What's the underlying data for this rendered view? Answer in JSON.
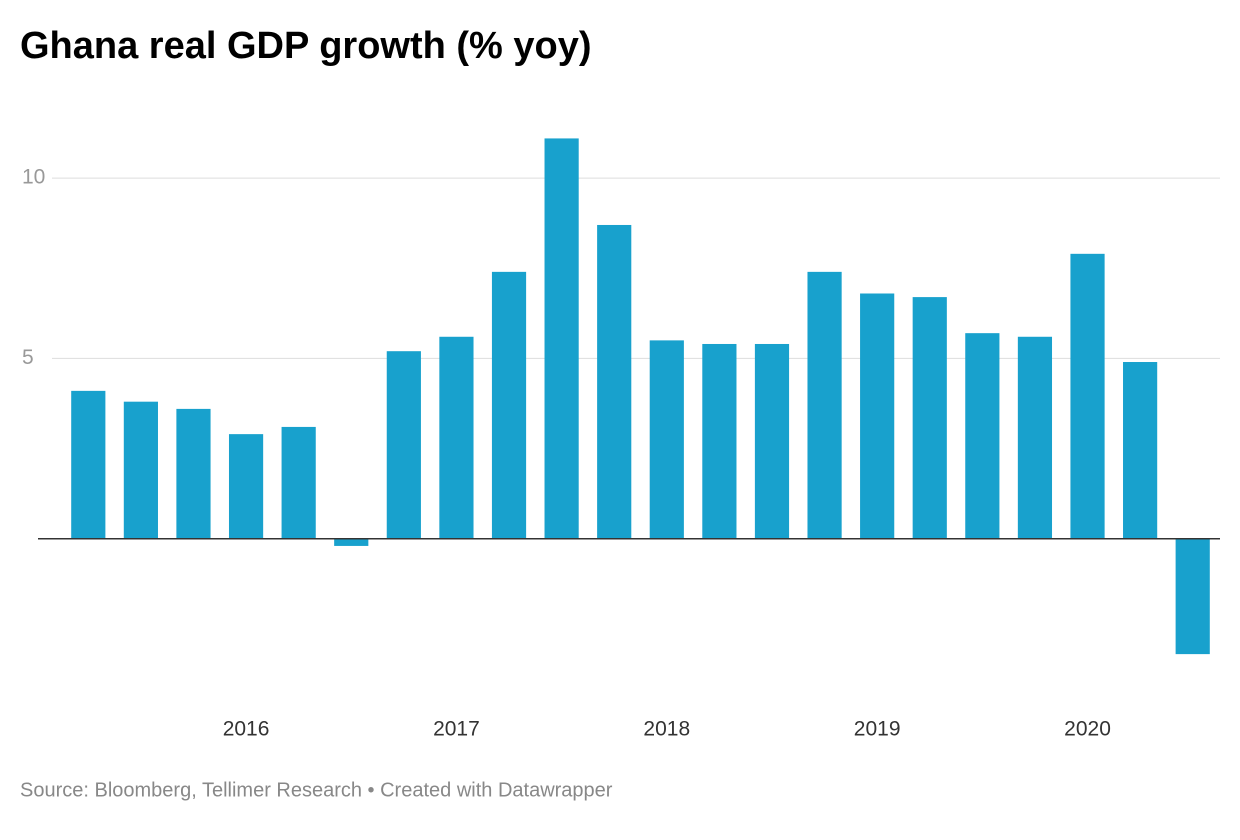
{
  "chart_data": {
    "type": "bar",
    "title": "Ghana real GDP growth (% yoy)",
    "categories": [
      null,
      null,
      null,
      "2016",
      null,
      null,
      null,
      "2017",
      null,
      null,
      null,
      "2018",
      null,
      null,
      null,
      "2019",
      null,
      null,
      null,
      "2020",
      null,
      null
    ],
    "values": [
      4.1,
      3.8,
      3.6,
      2.9,
      3.1,
      -0.2,
      5.2,
      5.6,
      7.4,
      11.1,
      8.7,
      5.5,
      5.4,
      5.4,
      7.4,
      6.8,
      6.7,
      5.7,
      5.6,
      7.9,
      4.9,
      -3.2
    ],
    "color": "#18a1cd",
    "ylim": [
      -4.5,
      11.5
    ],
    "yticks": [
      5,
      10
    ],
    "grid": true,
    "source": "Source: Bloomberg, Tellimer Research • Created with Datawrapper"
  }
}
